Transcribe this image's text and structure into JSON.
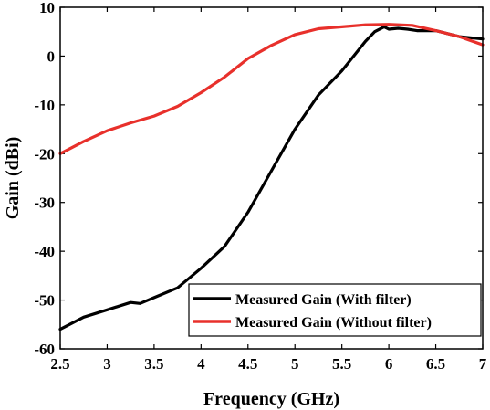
{
  "chart_data": {
    "type": "line",
    "xlabel": "Frequency (GHz)",
    "ylabel": "Gain (dBi)",
    "xlim": [
      2.5,
      7
    ],
    "ylim": [
      -60,
      10
    ],
    "xticks": [
      2.5,
      3,
      3.5,
      4,
      4.5,
      5,
      5.5,
      6,
      6.5,
      7
    ],
    "xtick_labels": [
      "2.5",
      "3",
      "3.5",
      "4",
      "4.5",
      "5",
      "5.5",
      "6",
      "6.5",
      "7"
    ],
    "yticks": [
      10,
      0,
      -10,
      -20,
      -30,
      -40,
      -50,
      -60
    ],
    "ytick_labels": [
      "10",
      "0",
      "-10",
      "-20",
      "-30",
      "-40",
      "-50",
      "-60"
    ],
    "grid": false,
    "legend_position": "bottom-right",
    "series": [
      {
        "name": "Measured Gain (With filter)",
        "color": "#000000",
        "x": [
          2.5,
          2.75,
          3.0,
          3.25,
          3.35,
          3.5,
          3.75,
          4.0,
          4.25,
          4.5,
          4.75,
          5.0,
          5.25,
          5.5,
          5.75,
          5.85,
          5.95,
          6.0,
          6.1,
          6.2,
          6.3,
          6.5,
          6.75,
          7.0
        ],
        "y": [
          -56,
          -53.5,
          -52,
          -50.5,
          -50.7,
          -49.5,
          -47.5,
          -43.5,
          -39,
          -32,
          -23.5,
          -15,
          -8,
          -3,
          3,
          5,
          6,
          5.5,
          5.7,
          5.5,
          5.2,
          5.2,
          4,
          3.5
        ]
      },
      {
        "name": "Measured Gain (Without filter)",
        "color": "#e8302b",
        "x": [
          2.5,
          2.75,
          3.0,
          3.25,
          3.5,
          3.75,
          4.0,
          4.25,
          4.5,
          4.75,
          5.0,
          5.25,
          5.5,
          5.75,
          6.0,
          6.25,
          6.5,
          6.75,
          7.0
        ],
        "y": [
          -20,
          -17.5,
          -15.3,
          -13.7,
          -12.3,
          -10.3,
          -7.5,
          -4.3,
          -0.5,
          2.2,
          4.4,
          5.6,
          6.0,
          6.4,
          6.5,
          6.3,
          5.2,
          4.0,
          2.3
        ]
      }
    ]
  }
}
